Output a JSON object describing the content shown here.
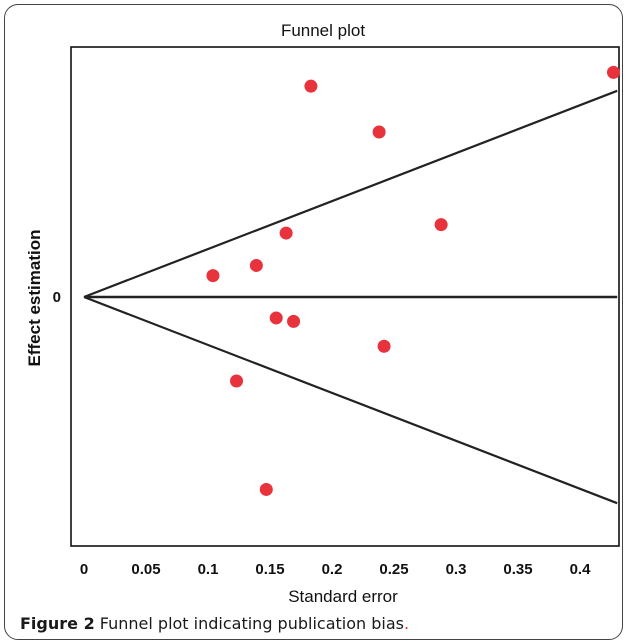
{
  "chart_data": {
    "type": "scatter",
    "title": "Funnel plot",
    "xlabel": "Standard error",
    "ylabel": "Effect estimation",
    "xlim": [
      0,
      0.43
    ],
    "ylim": [
      -1.15,
      1.15
    ],
    "xticks": [
      "0",
      "0.05",
      "0.1",
      "0.15",
      "0.2",
      "0.25",
      "0.3",
      "0.35",
      "0.4"
    ],
    "xtick_values": [
      0,
      0.05,
      0.1,
      0.15,
      0.2,
      0.25,
      0.3,
      0.35,
      0.4
    ],
    "yticks": [
      "0"
    ],
    "ytick_values": [
      0
    ],
    "funnel_slope": 2.22,
    "grid": false,
    "point_color": "#e8323c",
    "line_color": "#222222",
    "points": [
      {
        "x": 0.183,
        "y": 0.976
      },
      {
        "x": 0.238,
        "y": 0.764
      },
      {
        "x": 0.427,
        "y": 1.04
      },
      {
        "x": 0.288,
        "y": 0.335
      },
      {
        "x": 0.163,
        "y": 0.296
      },
      {
        "x": 0.139,
        "y": 0.146
      },
      {
        "x": 0.104,
        "y": 0.099
      },
      {
        "x": 0.155,
        "y": -0.097
      },
      {
        "x": 0.169,
        "y": -0.113
      },
      {
        "x": 0.242,
        "y": -0.228
      },
      {
        "x": 0.123,
        "y": -0.389
      },
      {
        "x": 0.147,
        "y": -0.891
      }
    ]
  },
  "caption": {
    "label": "Figure 2",
    "text": " Funnel plot indicating publication bias",
    "period": "."
  }
}
